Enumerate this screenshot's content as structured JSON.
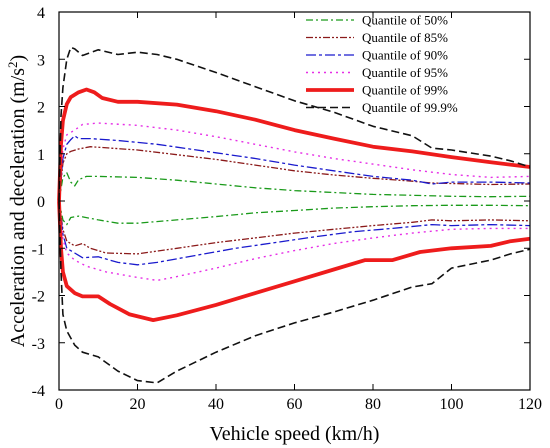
{
  "chart_data": {
    "type": "line",
    "title": "",
    "xlabel": "Vehicle speed (km/h)",
    "ylabel_main": "Acceleration and deceleration (m/s",
    "ylabel_sup": "2",
    "ylabel_end": ")",
    "xlim": [
      0,
      120
    ],
    "ylim": [
      -4,
      4
    ],
    "xticks": [
      "0",
      "20",
      "40",
      "60",
      "80",
      "100",
      "120"
    ],
    "yticks": [
      "-4",
      "-3",
      "-2",
      "-1",
      "0",
      "1",
      "2",
      "3",
      "4"
    ],
    "grid": false,
    "legend_position": "top-right",
    "series": [
      {
        "name": "Quantile of 50%",
        "color": "#1a9a1a",
        "dash": "7,3,2,3",
        "width": 1.3,
        "upper": [
          [
            0,
            0.0
          ],
          [
            1,
            0.5
          ],
          [
            2,
            0.6
          ],
          [
            3,
            0.4
          ],
          [
            4,
            0.32
          ],
          [
            5,
            0.45
          ],
          [
            7,
            0.52
          ],
          [
            10,
            0.52
          ],
          [
            20,
            0.5
          ],
          [
            30,
            0.44
          ],
          [
            40,
            0.36
          ],
          [
            50,
            0.28
          ],
          [
            60,
            0.22
          ],
          [
            70,
            0.18
          ],
          [
            80,
            0.14
          ],
          [
            90,
            0.12
          ],
          [
            100,
            0.1
          ],
          [
            110,
            0.09
          ],
          [
            120,
            0.1
          ]
        ],
        "lower": [
          [
            0,
            0.0
          ],
          [
            1,
            -0.4
          ],
          [
            2,
            -0.5
          ],
          [
            3,
            -0.35
          ],
          [
            5,
            -0.32
          ],
          [
            10,
            -0.4
          ],
          [
            15,
            -0.47
          ],
          [
            20,
            -0.47
          ],
          [
            30,
            -0.4
          ],
          [
            40,
            -0.33
          ],
          [
            50,
            -0.25
          ],
          [
            60,
            -0.2
          ],
          [
            70,
            -0.15
          ],
          [
            80,
            -0.12
          ],
          [
            90,
            -0.1
          ],
          [
            100,
            -0.09
          ],
          [
            110,
            -0.09
          ],
          [
            120,
            -0.1
          ]
        ]
      },
      {
        "name": "Quantile of 85%",
        "color": "#8b1a1a",
        "dash": "7,2,2,2,2,2",
        "width": 1.3,
        "upper": [
          [
            0,
            0.0
          ],
          [
            1,
            0.8
          ],
          [
            2,
            1.0
          ],
          [
            3,
            1.05
          ],
          [
            5,
            1.1
          ],
          [
            8,
            1.15
          ],
          [
            20,
            1.08
          ],
          [
            30,
            0.98
          ],
          [
            40,
            0.88
          ],
          [
            50,
            0.76
          ],
          [
            60,
            0.64
          ],
          [
            70,
            0.55
          ],
          [
            80,
            0.48
          ],
          [
            90,
            0.42
          ],
          [
            95,
            0.38
          ],
          [
            100,
            0.37
          ],
          [
            110,
            0.35
          ],
          [
            120,
            0.36
          ]
        ],
        "lower": [
          [
            0,
            0.0
          ],
          [
            1,
            -0.6
          ],
          [
            2,
            -0.85
          ],
          [
            4,
            -0.95
          ],
          [
            6,
            -0.9
          ],
          [
            8,
            -1.0
          ],
          [
            12,
            -1.1
          ],
          [
            20,
            -1.12
          ],
          [
            30,
            -1.0
          ],
          [
            40,
            -0.88
          ],
          [
            50,
            -0.78
          ],
          [
            60,
            -0.68
          ],
          [
            70,
            -0.6
          ],
          [
            80,
            -0.52
          ],
          [
            90,
            -0.45
          ],
          [
            95,
            -0.4
          ],
          [
            100,
            -0.42
          ],
          [
            110,
            -0.4
          ],
          [
            120,
            -0.42
          ]
        ]
      },
      {
        "name": "Quantile of 90%",
        "color": "#1a1acd",
        "dash": "10,3,3,3",
        "width": 1.3,
        "upper": [
          [
            0,
            0.0
          ],
          [
            1,
            0.9
          ],
          [
            2,
            1.2
          ],
          [
            3,
            1.3
          ],
          [
            4,
            1.38
          ],
          [
            5,
            1.32
          ],
          [
            8,
            1.32
          ],
          [
            15,
            1.28
          ],
          [
            25,
            1.2
          ],
          [
            40,
            1.02
          ],
          [
            50,
            0.9
          ],
          [
            60,
            0.76
          ],
          [
            70,
            0.64
          ],
          [
            80,
            0.52
          ],
          [
            90,
            0.44
          ],
          [
            95,
            0.36
          ],
          [
            100,
            0.4
          ],
          [
            110,
            0.4
          ],
          [
            120,
            0.38
          ]
        ],
        "lower": [
          [
            0,
            0.0
          ],
          [
            1,
            -0.7
          ],
          [
            2,
            -1.0
          ],
          [
            4,
            -1.1
          ],
          [
            6,
            -1.2
          ],
          [
            10,
            -1.18
          ],
          [
            15,
            -1.3
          ],
          [
            20,
            -1.35
          ],
          [
            25,
            -1.3
          ],
          [
            35,
            -1.15
          ],
          [
            45,
            -1.0
          ],
          [
            55,
            -0.88
          ],
          [
            65,
            -0.76
          ],
          [
            75,
            -0.65
          ],
          [
            85,
            -0.58
          ],
          [
            95,
            -0.5
          ],
          [
            100,
            -0.52
          ],
          [
            110,
            -0.5
          ],
          [
            120,
            -0.52
          ]
        ]
      },
      {
        "name": "Quantile of 95%",
        "color": "#e62ee6",
        "dash": "2,4",
        "width": 1.4,
        "upper": [
          [
            0,
            0.0
          ],
          [
            1,
            1.1
          ],
          [
            2,
            1.4
          ],
          [
            4,
            1.5
          ],
          [
            6,
            1.62
          ],
          [
            10,
            1.65
          ],
          [
            20,
            1.6
          ],
          [
            30,
            1.5
          ],
          [
            40,
            1.36
          ],
          [
            50,
            1.2
          ],
          [
            60,
            1.04
          ],
          [
            70,
            0.9
          ],
          [
            80,
            0.78
          ],
          [
            90,
            0.66
          ],
          [
            100,
            0.56
          ],
          [
            110,
            0.5
          ],
          [
            120,
            0.52
          ]
        ],
        "lower": [
          [
            0,
            0.0
          ],
          [
            1,
            -0.8
          ],
          [
            2,
            -1.1
          ],
          [
            4,
            -1.25
          ],
          [
            7,
            -1.38
          ],
          [
            12,
            -1.5
          ],
          [
            20,
            -1.62
          ],
          [
            25,
            -1.68
          ],
          [
            30,
            -1.6
          ],
          [
            40,
            -1.42
          ],
          [
            50,
            -1.22
          ],
          [
            60,
            -1.05
          ],
          [
            70,
            -0.9
          ],
          [
            80,
            -0.78
          ],
          [
            90,
            -0.68
          ],
          [
            100,
            -0.6
          ],
          [
            110,
            -0.58
          ],
          [
            120,
            -0.58
          ]
        ]
      },
      {
        "name": "Quantile of 99%",
        "color": "#ee1c1c",
        "dash": "",
        "width": 3.8,
        "upper": [
          [
            0,
            0.0
          ],
          [
            0.5,
            1.2
          ],
          [
            1,
            1.7
          ],
          [
            2,
            2.05
          ],
          [
            3,
            2.2
          ],
          [
            5,
            2.3
          ],
          [
            7,
            2.36
          ],
          [
            9,
            2.3
          ],
          [
            11,
            2.18
          ],
          [
            15,
            2.1
          ],
          [
            20,
            2.1
          ],
          [
            30,
            2.04
          ],
          [
            40,
            1.9
          ],
          [
            50,
            1.72
          ],
          [
            60,
            1.5
          ],
          [
            70,
            1.32
          ],
          [
            80,
            1.15
          ],
          [
            90,
            1.05
          ],
          [
            100,
            0.93
          ],
          [
            110,
            0.82
          ],
          [
            120,
            0.72
          ]
        ],
        "lower": [
          [
            0,
            0.0
          ],
          [
            0.5,
            -1.0
          ],
          [
            1,
            -1.5
          ],
          [
            2,
            -1.8
          ],
          [
            4,
            -1.95
          ],
          [
            6,
            -2.02
          ],
          [
            10,
            -2.02
          ],
          [
            13,
            -2.18
          ],
          [
            18,
            -2.4
          ],
          [
            24,
            -2.52
          ],
          [
            30,
            -2.42
          ],
          [
            40,
            -2.2
          ],
          [
            50,
            -1.95
          ],
          [
            60,
            -1.7
          ],
          [
            70,
            -1.45
          ],
          [
            78,
            -1.25
          ],
          [
            85,
            -1.25
          ],
          [
            92,
            -1.08
          ],
          [
            100,
            -1.0
          ],
          [
            110,
            -0.95
          ],
          [
            115,
            -0.85
          ],
          [
            120,
            -0.8
          ]
        ]
      },
      {
        "name": "Quantile of 99.9%",
        "color": "#111111",
        "dash": "8,4",
        "width": 1.6,
        "upper": [
          [
            0,
            0.0
          ],
          [
            0.5,
            1.8
          ],
          [
            1,
            2.4
          ],
          [
            2,
            3.0
          ],
          [
            3,
            3.25
          ],
          [
            4,
            3.22
          ],
          [
            6,
            3.08
          ],
          [
            10,
            3.2
          ],
          [
            15,
            3.1
          ],
          [
            20,
            3.15
          ],
          [
            25,
            3.1
          ],
          [
            30,
            3.0
          ],
          [
            40,
            2.72
          ],
          [
            50,
            2.42
          ],
          [
            60,
            2.12
          ],
          [
            70,
            1.88
          ],
          [
            80,
            1.58
          ],
          [
            90,
            1.38
          ],
          [
            95,
            1.12
          ],
          [
            100,
            1.08
          ],
          [
            110,
            0.95
          ],
          [
            115,
            0.85
          ],
          [
            120,
            0.72
          ]
        ],
        "lower": [
          [
            0,
            0.0
          ],
          [
            0.5,
            -1.5
          ],
          [
            1,
            -2.4
          ],
          [
            2,
            -2.75
          ],
          [
            4,
            -3.05
          ],
          [
            6,
            -3.2
          ],
          [
            10,
            -3.3
          ],
          [
            15,
            -3.6
          ],
          [
            20,
            -3.8
          ],
          [
            25,
            -3.85
          ],
          [
            30,
            -3.6
          ],
          [
            40,
            -3.2
          ],
          [
            50,
            -2.85
          ],
          [
            60,
            -2.58
          ],
          [
            70,
            -2.35
          ],
          [
            80,
            -2.1
          ],
          [
            90,
            -1.82
          ],
          [
            95,
            -1.75
          ],
          [
            100,
            -1.42
          ],
          [
            110,
            -1.25
          ],
          [
            115,
            -1.12
          ],
          [
            120,
            -1.02
          ]
        ]
      }
    ]
  }
}
